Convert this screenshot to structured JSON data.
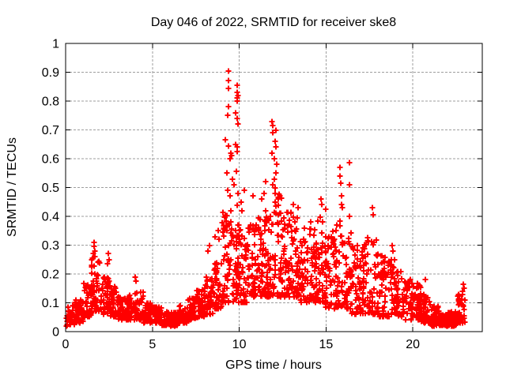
{
  "figure": {
    "background": "#ffffff",
    "frame_color": "#000000",
    "text_color": "#000000"
  },
  "chart_data": {
    "type": "scatter",
    "title": "Day 046 of 2022, SRMTID for receiver ske8",
    "xlabel": "GPS time / hours",
    "ylabel": "SRMTID / TECUs",
    "series_name": "SRMTID",
    "xlim": [
      0,
      24
    ],
    "ylim": [
      0,
      1
    ],
    "xticks": [
      0,
      5,
      10,
      15,
      20
    ],
    "yticks": [
      0,
      0.1,
      0.2,
      0.3,
      0.4,
      0.5,
      0.6,
      0.7,
      0.8,
      0.9,
      1
    ],
    "grid": {
      "show": true,
      "color": "#9e9e9e",
      "dash": [
        3,
        2
      ]
    },
    "marker": {
      "symbol": "plus",
      "color": "#ff0000",
      "size": 7,
      "stroke_width": 2
    },
    "data_x_start": 0.0,
    "data_x_end": 23.0,
    "seed": 2022046,
    "bin_width": 0.5,
    "cloud_bins": [
      [
        0.0,
        0.02,
        0.09,
        35
      ],
      [
        0.5,
        0.03,
        0.11,
        40
      ],
      [
        1.0,
        0.05,
        0.17,
        45
      ],
      [
        1.5,
        0.07,
        0.26,
        50
      ],
      [
        2.0,
        0.06,
        0.2,
        45
      ],
      [
        2.5,
        0.05,
        0.16,
        40
      ],
      [
        3.0,
        0.04,
        0.12,
        40
      ],
      [
        3.5,
        0.04,
        0.13,
        40
      ],
      [
        4.0,
        0.04,
        0.15,
        40
      ],
      [
        4.5,
        0.03,
        0.1,
        38
      ],
      [
        5.0,
        0.03,
        0.09,
        38
      ],
      [
        5.5,
        0.02,
        0.07,
        40
      ],
      [
        6.0,
        0.02,
        0.07,
        40
      ],
      [
        6.5,
        0.03,
        0.09,
        40
      ],
      [
        7.0,
        0.04,
        0.12,
        42
      ],
      [
        7.5,
        0.05,
        0.15,
        42
      ],
      [
        8.0,
        0.06,
        0.19,
        45
      ],
      [
        8.5,
        0.08,
        0.24,
        45
      ],
      [
        9.0,
        0.1,
        0.42,
        50
      ],
      [
        9.5,
        0.1,
        0.46,
        50
      ],
      [
        10.0,
        0.1,
        0.36,
        48
      ],
      [
        10.5,
        0.12,
        0.38,
        48
      ],
      [
        11.0,
        0.12,
        0.4,
        48
      ],
      [
        11.5,
        0.12,
        0.43,
        48
      ],
      [
        12.0,
        0.12,
        0.48,
        50
      ],
      [
        12.5,
        0.12,
        0.42,
        48
      ],
      [
        13.0,
        0.12,
        0.4,
        46
      ],
      [
        13.5,
        0.1,
        0.36,
        44
      ],
      [
        14.0,
        0.1,
        0.36,
        46
      ],
      [
        14.5,
        0.1,
        0.4,
        46
      ],
      [
        15.0,
        0.08,
        0.36,
        44
      ],
      [
        15.5,
        0.08,
        0.4,
        44
      ],
      [
        16.0,
        0.08,
        0.36,
        44
      ],
      [
        16.5,
        0.06,
        0.3,
        42
      ],
      [
        17.0,
        0.06,
        0.33,
        42
      ],
      [
        17.5,
        0.06,
        0.32,
        40
      ],
      [
        18.0,
        0.05,
        0.27,
        40
      ],
      [
        18.5,
        0.05,
        0.25,
        40
      ],
      [
        19.0,
        0.05,
        0.21,
        40
      ],
      [
        19.5,
        0.04,
        0.18,
        40
      ],
      [
        20.0,
        0.04,
        0.17,
        42
      ],
      [
        20.5,
        0.03,
        0.13,
        42
      ],
      [
        21.0,
        0.02,
        0.09,
        45
      ],
      [
        21.5,
        0.02,
        0.06,
        60
      ],
      [
        22.0,
        0.02,
        0.07,
        60
      ],
      [
        22.5,
        0.03,
        0.13,
        45
      ]
    ],
    "peak_points": [
      [
        9.38,
        0.905
      ],
      [
        9.38,
        0.87
      ],
      [
        9.38,
        0.845
      ],
      [
        9.88,
        0.855
      ],
      [
        9.9,
        0.83
      ],
      [
        9.92,
        0.82
      ],
      [
        9.9,
        0.81
      ],
      [
        9.88,
        0.8
      ],
      [
        9.4,
        0.78
      ],
      [
        9.8,
        0.76
      ],
      [
        9.35,
        0.75
      ],
      [
        9.9,
        0.74
      ],
      [
        9.92,
        0.72
      ],
      [
        9.2,
        0.665
      ],
      [
        9.8,
        0.65
      ],
      [
        9.4,
        0.645
      ],
      [
        9.9,
        0.64
      ],
      [
        9.88,
        0.625
      ],
      [
        9.5,
        0.62
      ],
      [
        9.55,
        0.61
      ],
      [
        9.45,
        0.6
      ],
      [
        9.85,
        0.555
      ],
      [
        9.3,
        0.55
      ],
      [
        9.6,
        0.53
      ],
      [
        9.7,
        0.51
      ],
      [
        9.35,
        0.49
      ],
      [
        9.45,
        0.47
      ],
      [
        9.95,
        0.48
      ],
      [
        11.9,
        0.73
      ],
      [
        11.95,
        0.715
      ],
      [
        12.1,
        0.7
      ],
      [
        11.95,
        0.69
      ],
      [
        12.05,
        0.66
      ],
      [
        12.1,
        0.64
      ],
      [
        11.9,
        0.62
      ],
      [
        12.0,
        0.6
      ],
      [
        12.15,
        0.58
      ],
      [
        12.1,
        0.55
      ],
      [
        12.0,
        0.53
      ],
      [
        11.95,
        0.51
      ],
      [
        12.05,
        0.5
      ],
      [
        10.1,
        0.45
      ],
      [
        10.15,
        0.42
      ],
      [
        10.3,
        0.49
      ],
      [
        10.8,
        0.47
      ],
      [
        11.3,
        0.46
      ],
      [
        11.5,
        0.52
      ],
      [
        11.45,
        0.48
      ],
      [
        13.1,
        0.44
      ],
      [
        13.0,
        0.41
      ],
      [
        13.4,
        0.43
      ],
      [
        14.1,
        0.38
      ],
      [
        14.7,
        0.46
      ],
      [
        14.75,
        0.44
      ],
      [
        15.0,
        0.425
      ],
      [
        15.8,
        0.57
      ],
      [
        15.8,
        0.54
      ],
      [
        15.85,
        0.515
      ],
      [
        15.9,
        0.47
      ],
      [
        15.9,
        0.44
      ],
      [
        15.92,
        0.43
      ],
      [
        16.35,
        0.585
      ],
      [
        16.35,
        0.51
      ],
      [
        16.33,
        0.4
      ],
      [
        17.65,
        0.43
      ],
      [
        17.7,
        0.405
      ],
      [
        18.8,
        0.3
      ],
      [
        18.85,
        0.28
      ],
      [
        1.62,
        0.31
      ],
      [
        1.65,
        0.295
      ],
      [
        1.7,
        0.28
      ],
      [
        1.58,
        0.27
      ],
      [
        1.68,
        0.26
      ],
      [
        2.45,
        0.27
      ],
      [
        2.5,
        0.25
      ],
      [
        2.4,
        0.235
      ],
      [
        4.0,
        0.19
      ],
      [
        4.05,
        0.175
      ],
      [
        8.2,
        0.28
      ],
      [
        8.3,
        0.3
      ],
      [
        8.6,
        0.33
      ],
      [
        8.8,
        0.35
      ],
      [
        8.85,
        0.32
      ],
      [
        20.7,
        0.18
      ],
      [
        22.9,
        0.165
      ],
      [
        22.95,
        0.15
      ],
      [
        22.85,
        0.14
      ]
    ]
  }
}
